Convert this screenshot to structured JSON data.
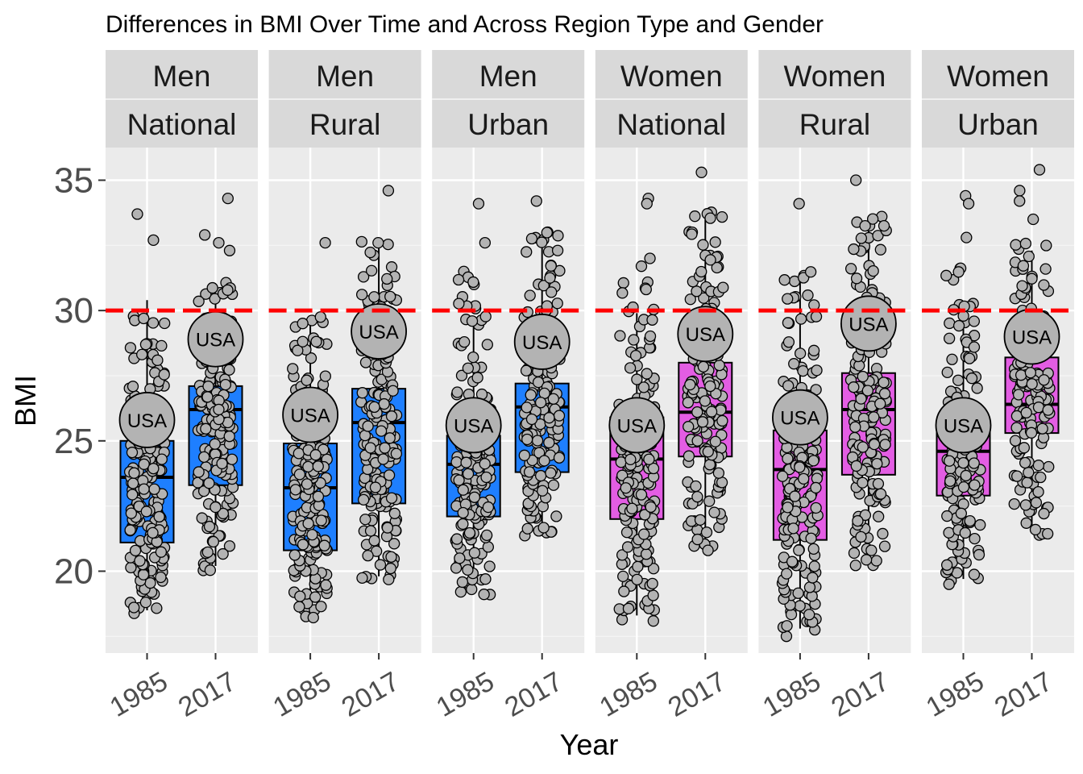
{
  "chart_data": {
    "type": "box",
    "title": "Differences in BMI Over Time and Across Region Type and Gender",
    "xlabel": "Year",
    "ylabel": "BMI",
    "ylim": [
      17,
      37
    ],
    "y_ticks": [
      20,
      25,
      30,
      35
    ],
    "categories": [
      "1985",
      "2017"
    ],
    "reference_line": {
      "y": 30,
      "style": "dashed",
      "color": "#ff0000"
    },
    "highlight_label": "USA",
    "colors": {
      "Men": "#1e7fff",
      "Women": "#e35de3",
      "point_fill": "#b3b3b3",
      "panel_background": "#ebebeb",
      "strip_background": "#d9d9d9"
    },
    "panels": [
      {
        "gender": "Men",
        "region": "National",
        "boxes": [
          {
            "year": "1985",
            "min": 18.5,
            "q1": 21.1,
            "median": 23.6,
            "q3": 25.0,
            "max": 30.4,
            "usa": 25.8,
            "outliers": [
              33.7,
              32.7
            ],
            "spread": [
              18.5,
              19.0,
              19.5,
              19.8,
              20.0,
              20.3,
              20.6,
              20.9,
              21.2,
              21.5,
              21.8,
              22.1,
              22.4,
              22.7,
              23.0,
              23.3,
              23.6,
              23.9,
              24.2,
              24.5,
              24.8,
              25.2,
              25.6,
              26.0,
              26.5,
              27.0,
              27.5,
              28.2,
              28.8,
              29.5
            ]
          },
          {
            "year": "2017",
            "min": 20.2,
            "q1": 23.3,
            "median": 26.2,
            "q3": 27.1,
            "max": 30.9,
            "usa": 28.9,
            "outliers": [
              34.3,
              32.9,
              32.6,
              32.3
            ],
            "spread": [
              20.2,
              20.8,
              21.4,
              21.9,
              22.3,
              22.7,
              23.1,
              23.5,
              23.9,
              24.3,
              24.7,
              25.1,
              25.5,
              25.8,
              26.1,
              26.4,
              26.7,
              27.0,
              27.3,
              27.6,
              28.0,
              28.4,
              28.8,
              29.3,
              29.8,
              30.4,
              30.9
            ]
          }
        ]
      },
      {
        "gender": "Men",
        "region": "Rural",
        "boxes": [
          {
            "year": "1985",
            "min": 18.5,
            "q1": 20.8,
            "median": 23.2,
            "q3": 24.9,
            "max": 29.6,
            "usa": 26.0,
            "outliers": [
              32.6
            ],
            "spread": [
              18.5,
              18.9,
              19.3,
              19.7,
              20.0,
              20.3,
              20.6,
              20.9,
              21.2,
              21.5,
              21.8,
              22.1,
              22.4,
              22.7,
              23.0,
              23.3,
              23.6,
              23.9,
              24.2,
              24.5,
              24.9,
              25.3,
              25.8,
              26.3,
              26.9,
              27.6,
              28.4,
              29.0,
              29.6
            ]
          },
          {
            "year": "2017",
            "min": 19.8,
            "q1": 22.6,
            "median": 25.7,
            "q3": 27.0,
            "max": 32.4,
            "usa": 29.2,
            "outliers": [
              34.6
            ],
            "spread": [
              19.8,
              20.3,
              20.8,
              21.3,
              21.8,
              22.2,
              22.6,
              23.0,
              23.4,
              23.8,
              24.2,
              24.6,
              25.0,
              25.4,
              25.8,
              26.2,
              26.6,
              27.0,
              27.4,
              27.8,
              28.2,
              28.6,
              29.1,
              29.6,
              30.2,
              30.8,
              31.5,
              32.4
            ]
          }
        ]
      },
      {
        "gender": "Men",
        "region": "Urban",
        "boxes": [
          {
            "year": "1985",
            "min": 19.4,
            "q1": 22.1,
            "median": 24.1,
            "q3": 25.2,
            "max": 29.5,
            "usa": 25.6,
            "outliers": [
              34.1,
              32.6
            ],
            "spread": [
              19.4,
              19.8,
              20.2,
              20.6,
              21.0,
              21.3,
              21.6,
              21.9,
              22.2,
              22.5,
              22.8,
              23.1,
              23.4,
              23.7,
              24.0,
              24.3,
              24.6,
              24.9,
              25.3,
              25.8,
              26.4,
              27.0,
              27.7,
              28.5,
              29.5,
              30.3,
              31.2
            ]
          },
          {
            "year": "2017",
            "min": 21.5,
            "q1": 23.8,
            "median": 26.3,
            "q3": 27.2,
            "max": 32.9,
            "usa": 28.8,
            "outliers": [
              34.2
            ],
            "spread": [
              21.5,
              21.9,
              22.3,
              22.7,
              23.1,
              23.5,
              23.9,
              24.3,
              24.7,
              25.1,
              25.5,
              25.9,
              26.3,
              26.7,
              27.1,
              27.5,
              27.9,
              28.3,
              28.7,
              29.2,
              29.7,
              30.2,
              30.8,
              31.5,
              32.5,
              32.9
            ]
          }
        ]
      },
      {
        "gender": "Women",
        "region": "National",
        "boxes": [
          {
            "year": "1985",
            "min": 18.3,
            "q1": 22.0,
            "median": 24.3,
            "q3": 25.9,
            "max": 29.9,
            "usa": 25.6,
            "outliers": [
              34.3,
              34.1,
              32.0,
              31.7
            ],
            "spread": [
              18.3,
              18.8,
              19.3,
              19.7,
              20.1,
              20.5,
              20.9,
              21.3,
              21.7,
              22.1,
              22.5,
              22.9,
              23.3,
              23.7,
              24.1,
              24.5,
              24.9,
              25.3,
              25.7,
              26.1,
              26.5,
              27.0,
              27.6,
              28.3,
              29.1,
              29.9,
              30.9
            ]
          },
          {
            "year": "2017",
            "min": 21.0,
            "q1": 24.4,
            "median": 26.1,
            "q3": 28.0,
            "max": 33.5,
            "usa": 29.1,
            "outliers": [
              35.3
            ],
            "spread": [
              21.0,
              21.5,
              22.0,
              22.5,
              23.0,
              23.5,
              24.0,
              24.5,
              25.0,
              25.5,
              26.0,
              26.5,
              27.0,
              27.5,
              28.0,
              28.5,
              29.0,
              29.6,
              30.2,
              30.8,
              31.4,
              32.1,
              32.8,
              33.5
            ]
          }
        ]
      },
      {
        "gender": "Women",
        "region": "Rural",
        "boxes": [
          {
            "year": "1985",
            "min": 17.8,
            "q1": 21.2,
            "median": 23.9,
            "q3": 25.4,
            "max": 31.2,
            "usa": 25.9,
            "outliers": [
              34.1
            ],
            "spread": [
              17.8,
              18.2,
              18.6,
              19.0,
              19.4,
              19.8,
              20.2,
              20.6,
              21.0,
              21.4,
              21.8,
              22.2,
              22.6,
              23.0,
              23.4,
              23.8,
              24.2,
              24.6,
              25.0,
              25.4,
              25.9,
              26.5,
              27.1,
              27.8,
              28.6,
              29.5,
              30.5,
              31.2
            ]
          },
          {
            "year": "2017",
            "min": 20.5,
            "q1": 23.7,
            "median": 26.2,
            "q3": 27.6,
            "max": 33.5,
            "usa": 29.5,
            "outliers": [
              35.0
            ],
            "spread": [
              20.5,
              21.0,
              21.5,
              22.0,
              22.5,
              23.0,
              23.5,
              24.0,
              24.5,
              25.0,
              25.5,
              26.0,
              26.5,
              27.0,
              27.5,
              28.0,
              28.5,
              29.0,
              29.6,
              30.2,
              30.8,
              31.5,
              32.3,
              33.0,
              33.5
            ]
          }
        ]
      },
      {
        "gender": "Women",
        "region": "Urban",
        "boxes": [
          {
            "year": "1985",
            "min": 19.7,
            "q1": 22.9,
            "median": 24.6,
            "q3": 25.8,
            "max": 29.7,
            "usa": 25.6,
            "outliers": [
              34.4,
              34.1,
              32.8
            ],
            "spread": [
              19.7,
              20.1,
              20.5,
              20.9,
              21.3,
              21.7,
              22.1,
              22.5,
              22.9,
              23.3,
              23.7,
              24.1,
              24.5,
              24.9,
              25.3,
              25.7,
              26.2,
              26.8,
              27.4,
              28.1,
              28.8,
              29.7,
              30.2,
              31.4
            ]
          },
          {
            "year": "2017",
            "min": 21.6,
            "q1": 25.3,
            "median": 26.4,
            "q3": 28.2,
            "max": 32.3,
            "usa": 29.0,
            "outliers": [
              35.4,
              34.6,
              34.2,
              33.5
            ],
            "spread": [
              21.6,
              22.2,
              22.8,
              23.3,
              23.8,
              24.3,
              24.8,
              25.3,
              25.8,
              26.3,
              26.8,
              27.3,
              27.8,
              28.3,
              28.8,
              29.3,
              29.9,
              30.5,
              31.1,
              31.8,
              32.3
            ]
          }
        ]
      }
    ]
  }
}
